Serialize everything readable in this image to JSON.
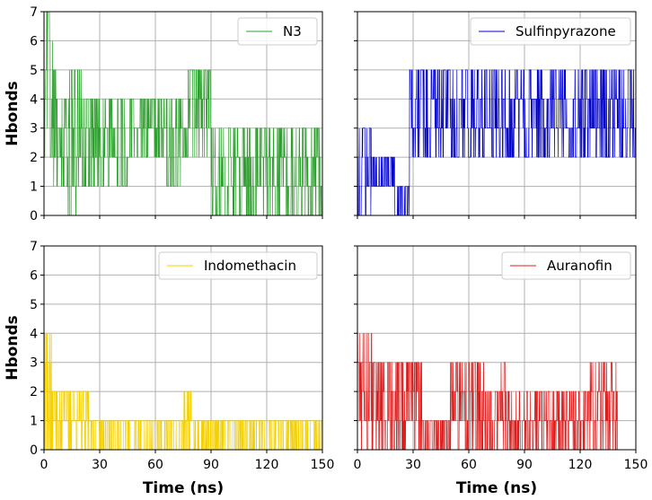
{
  "chart_data": {
    "type": "line",
    "layout": "2x2 grid of subplots sharing x and y axes",
    "xlabel": "Time (ns)",
    "ylabel": "Hbonds",
    "xlim": [
      0,
      150
    ],
    "ylim": [
      0,
      7
    ],
    "xticks": [
      0,
      30,
      60,
      90,
      120,
      150
    ],
    "yticks": [
      0,
      1,
      2,
      3,
      4,
      5,
      6,
      7
    ],
    "grid": true,
    "subplots": [
      {
        "series_name": "N3",
        "color": "#2ca02c",
        "legend_position": "top-right",
        "segments": [
          {
            "t0": 0,
            "t1": 5,
            "min": 2,
            "max": 7
          },
          {
            "t0": 5,
            "t1": 10,
            "min": 1,
            "max": 5
          },
          {
            "t0": 10,
            "t1": 20,
            "min": 0,
            "max": 5
          },
          {
            "t0": 20,
            "t1": 30,
            "min": 1,
            "max": 4
          },
          {
            "t0": 30,
            "t1": 50,
            "min": 1,
            "max": 4
          },
          {
            "t0": 50,
            "t1": 65,
            "min": 2,
            "max": 4
          },
          {
            "t0": 65,
            "t1": 75,
            "min": 1,
            "max": 4
          },
          {
            "t0": 75,
            "t1": 90,
            "min": 2,
            "max": 5
          },
          {
            "t0": 90,
            "t1": 110,
            "min": 0,
            "max": 3
          },
          {
            "t0": 110,
            "t1": 130,
            "min": 0,
            "max": 3
          },
          {
            "t0": 130,
            "t1": 150,
            "min": 0,
            "max": 3
          }
        ]
      },
      {
        "series_name": "Sulfinpyrazone",
        "color": "#0000cc",
        "legend_position": "top-right",
        "segments": [
          {
            "t0": 0,
            "t1": 8,
            "min": 0,
            "max": 3
          },
          {
            "t0": 8,
            "t1": 20,
            "min": 1,
            "max": 2
          },
          {
            "t0": 20,
            "t1": 28,
            "min": 0,
            "max": 1
          },
          {
            "t0": 28,
            "t1": 60,
            "min": 2,
            "max": 5
          },
          {
            "t0": 60,
            "t1": 100,
            "min": 2,
            "max": 5
          },
          {
            "t0": 100,
            "t1": 150,
            "min": 2,
            "max": 5
          }
        ]
      },
      {
        "series_name": "Indomethacin",
        "color": "#f5d000",
        "legend_position": "top-right",
        "segments": [
          {
            "t0": 0,
            "t1": 4,
            "min": 0,
            "max": 4
          },
          {
            "t0": 4,
            "t1": 25,
            "min": 0,
            "max": 2
          },
          {
            "t0": 25,
            "t1": 75,
            "min": 0,
            "max": 1
          },
          {
            "t0": 75,
            "t1": 80,
            "min": 0,
            "max": 2
          },
          {
            "t0": 80,
            "t1": 150,
            "min": 0,
            "max": 1
          }
        ]
      },
      {
        "series_name": "Auranofin",
        "color": "#dd1c1c",
        "legend_position": "top-right",
        "segments": [
          {
            "t0": 0,
            "t1": 8,
            "min": 0,
            "max": 4
          },
          {
            "t0": 8,
            "t1": 35,
            "min": 0,
            "max": 3
          },
          {
            "t0": 35,
            "t1": 50,
            "min": 0,
            "max": 1
          },
          {
            "t0": 50,
            "t1": 80,
            "min": 0,
            "max": 3
          },
          {
            "t0": 80,
            "t1": 100,
            "min": 0,
            "max": 2
          },
          {
            "t0": 100,
            "t1": 125,
            "min": 0,
            "max": 2
          },
          {
            "t0": 125,
            "t1": 140,
            "min": 0,
            "max": 3
          },
          {
            "t0": 140,
            "t1": 150,
            "min": 0,
            "max": 0
          }
        ]
      }
    ]
  }
}
